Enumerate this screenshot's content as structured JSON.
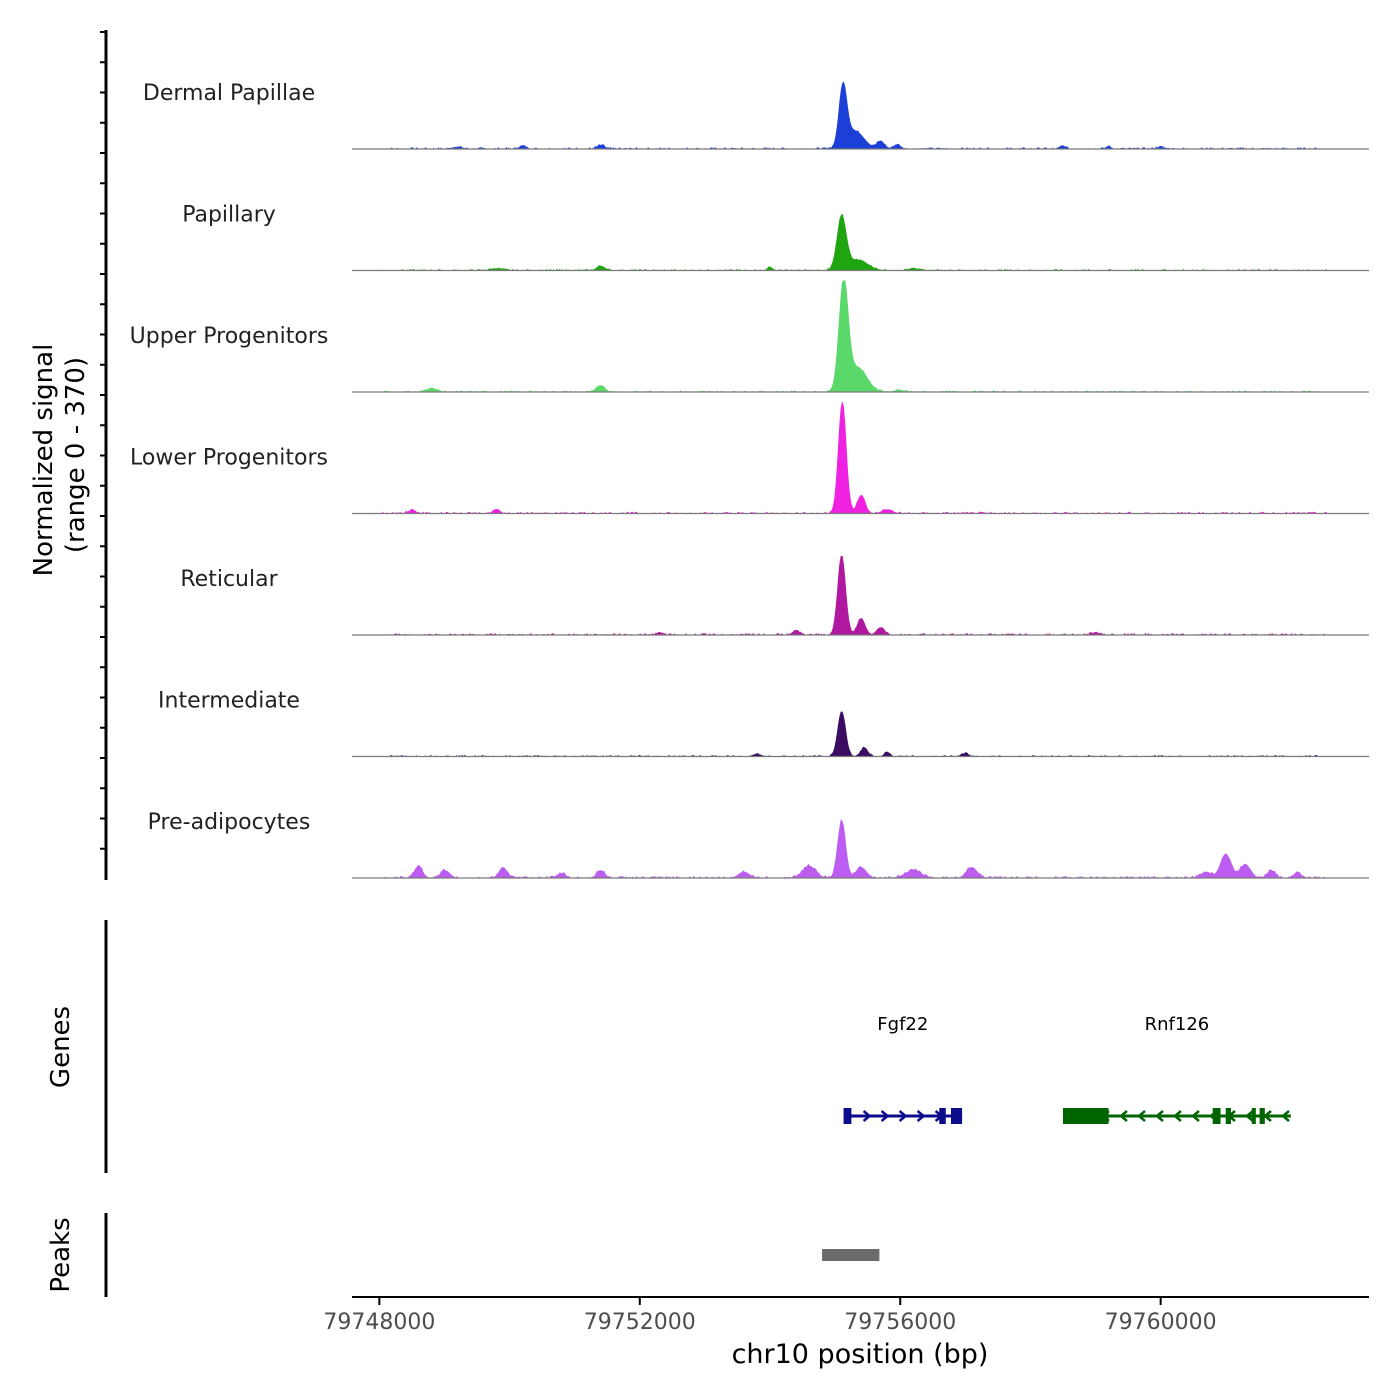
{
  "chart_data": {
    "type": "area",
    "title": "",
    "xlabel": "chr10 position (bp)",
    "ylabel_line1": "Normalized signal",
    "ylabel_line2": "(range 0 - 370)",
    "ylim": [
      0,
      370
    ],
    "xlim": [
      79747580,
      79763200
    ],
    "x_ticks": [
      79748000,
      79752000,
      79756000,
      79760000
    ],
    "x_tick_labels": [
      "79748000",
      "79752000",
      "79756000",
      "79760000"
    ],
    "tracks": [
      {
        "name": "Dermal Papillae",
        "color": "#1c3fd8",
        "peaks": [
          [
            79755120,
            195,
            60
          ],
          [
            79755300,
            60,
            140
          ],
          [
            79755700,
            25,
            60
          ],
          [
            79755950,
            15,
            50
          ],
          [
            79751400,
            12,
            60
          ],
          [
            79750200,
            10,
            50
          ],
          [
            79749200,
            6,
            80
          ],
          [
            79758500,
            10,
            40
          ],
          [
            79759200,
            8,
            40
          ],
          [
            79760000,
            6,
            60
          ]
        ],
        "noise": 5
      },
      {
        "name": "Papillary",
        "color": "#1fa50f",
        "peaks": [
          [
            79755100,
            175,
            70
          ],
          [
            79755350,
            35,
            150
          ],
          [
            79751400,
            15,
            60
          ],
          [
            79749800,
            6,
            100
          ],
          [
            79754000,
            10,
            40
          ],
          [
            79756200,
            8,
            60
          ]
        ],
        "noise": 4
      },
      {
        "name": "Upper Progenitors",
        "color": "#5ad86a",
        "peaks": [
          [
            79755130,
            360,
            70
          ],
          [
            79755350,
            80,
            140
          ],
          [
            79751400,
            22,
            60
          ],
          [
            79748800,
            12,
            80
          ],
          [
            79756000,
            5,
            80
          ]
        ],
        "noise": 4
      },
      {
        "name": "Lower Progenitors",
        "color": "#f022e2",
        "peaks": [
          [
            79755110,
            370,
            60
          ],
          [
            79755400,
            60,
            60
          ],
          [
            79749800,
            14,
            50
          ],
          [
            79748500,
            10,
            60
          ],
          [
            79755800,
            12,
            80
          ]
        ],
        "noise": 5
      },
      {
        "name": "Reticular",
        "color": "#b0199f",
        "peaks": [
          [
            79755100,
            265,
            60
          ],
          [
            79755400,
            55,
            60
          ],
          [
            79755700,
            25,
            60
          ],
          [
            79754400,
            15,
            50
          ],
          [
            79759000,
            8,
            60
          ],
          [
            79752300,
            6,
            60
          ]
        ],
        "noise": 5
      },
      {
        "name": "Intermediate",
        "color": "#3a0d63",
        "peaks": [
          [
            79755100,
            150,
            60
          ],
          [
            79755450,
            30,
            50
          ],
          [
            79755800,
            15,
            40
          ],
          [
            79757000,
            10,
            50
          ],
          [
            79753800,
            8,
            60
          ]
        ],
        "noise": 4
      },
      {
        "name": "Pre-adipocytes",
        "color": "#bc5cf1",
        "peaks": [
          [
            79755100,
            190,
            60
          ],
          [
            79754600,
            40,
            100
          ],
          [
            79755400,
            35,
            80
          ],
          [
            79748600,
            40,
            60
          ],
          [
            79749000,
            25,
            60
          ],
          [
            79749900,
            35,
            60
          ],
          [
            79751400,
            25,
            60
          ],
          [
            79757100,
            35,
            80
          ],
          [
            79756200,
            25,
            120
          ],
          [
            79761000,
            80,
            80
          ],
          [
            79761300,
            45,
            80
          ],
          [
            79760700,
            20,
            80
          ],
          [
            79761700,
            25,
            60
          ],
          [
            79750800,
            15,
            60
          ],
          [
            79753600,
            20,
            80
          ],
          [
            79762100,
            18,
            60
          ]
        ],
        "noise": 6
      }
    ],
    "genes_panel_label": "Genes",
    "genes": [
      {
        "name": "Fgf22",
        "strand": "+",
        "start": 79755130,
        "end": 79756950,
        "color": "#0d0d8c",
        "exons": [
          [
            79755130,
            79755250
          ],
          [
            79756600,
            79756700
          ],
          [
            79756780,
            79756950
          ]
        ]
      },
      {
        "name": "Rnf126",
        "strand": "-",
        "start": 79758500,
        "end": 79762000,
        "color": "#006400",
        "exons": [
          [
            79758500,
            79759200
          ],
          [
            79760800,
            79760920
          ],
          [
            79761000,
            79761080
          ],
          [
            79761400,
            79761460
          ],
          [
            79761520,
            79761600
          ]
        ]
      }
    ],
    "peaks_panel_label": "Peaks",
    "peak_regions": [
      [
        79754800,
        79755680
      ]
    ],
    "peak_color": "#6b6b6b"
  }
}
